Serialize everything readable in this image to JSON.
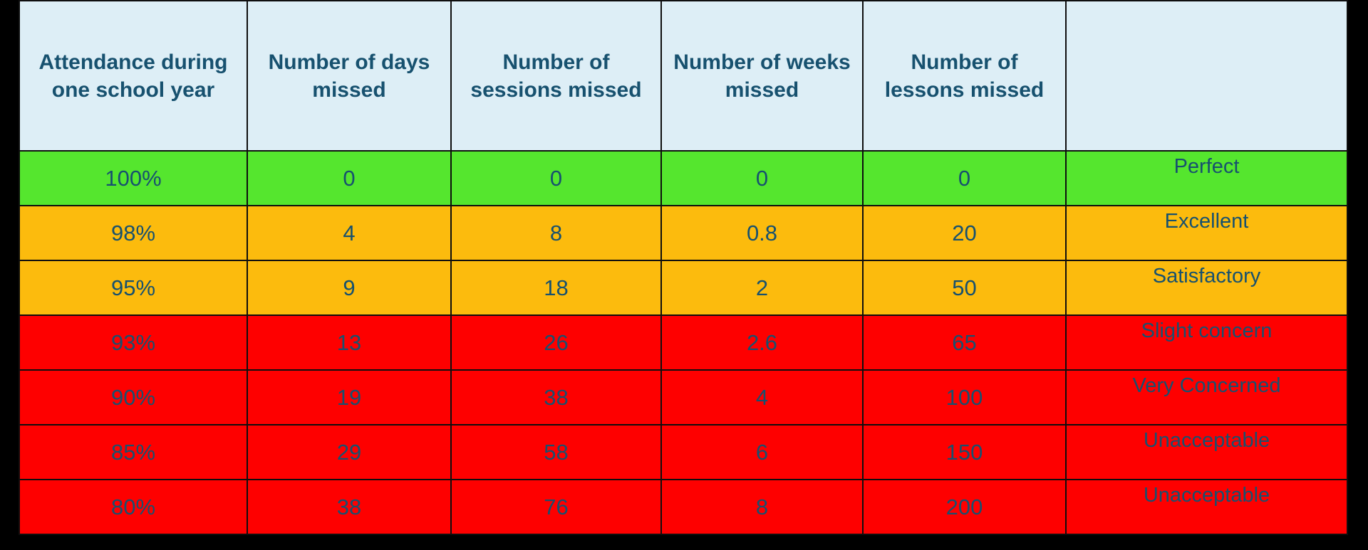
{
  "colors": {
    "background": "#000000",
    "header_bg": "#ddeef6",
    "text": "#17516f",
    "border": "#0e0e0e",
    "perfect_green": "#55e62e",
    "warning_amber": "#fcbb0d",
    "alert_red": "#fe0000"
  },
  "chart_data": {
    "type": "table",
    "columns": [
      "Attendance during one school year",
      "Number of days missed",
      "Number of sessions missed",
      "Number of weeks missed",
      "Number of lessons missed",
      ""
    ],
    "rows": [
      [
        "100%",
        "0",
        "0",
        "0",
        "0",
        "Perfect"
      ],
      [
        "98%",
        "4",
        "8",
        "0.8",
        "20",
        "Excellent"
      ],
      [
        "95%",
        "9",
        "18",
        "2",
        "50",
        "Satisfactory"
      ],
      [
        "93%",
        "13",
        "26",
        "2.6",
        "65",
        "Slight concern"
      ],
      [
        "90%",
        "19",
        "38",
        "4",
        "100",
        "Very Concerned"
      ],
      [
        "85%",
        "29",
        "58",
        "6",
        "150",
        "Unacceptable"
      ],
      [
        "80%",
        "38",
        "76",
        "8",
        "200",
        "Unacceptable"
      ]
    ],
    "row_colors": [
      "#55e62e",
      "#fcbb0d",
      "#fcbb0d",
      "#fe0000",
      "#fe0000",
      "#fe0000",
      "#fe0000"
    ],
    "layout": {
      "grid": "on",
      "header_position": "top",
      "label_column_position": "right"
    }
  }
}
